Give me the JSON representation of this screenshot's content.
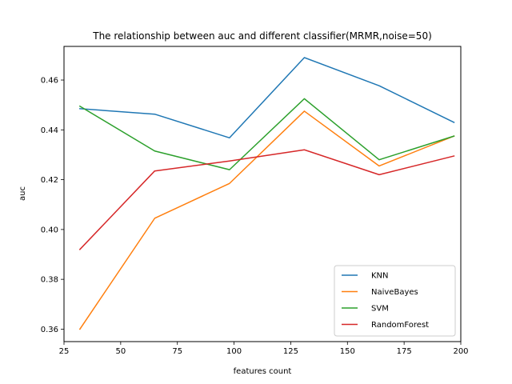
{
  "chart_data": {
    "type": "line",
    "title": "The relationship between auc and different classifier(MRMR,noise=50)",
    "xlabel": "features count",
    "ylabel": "auc",
    "x": [
      32,
      65,
      98,
      131,
      164,
      197
    ],
    "xlim": [
      25,
      200
    ],
    "ylim": [
      0.355,
      0.4735
    ],
    "xticks": [
      25,
      50,
      75,
      100,
      125,
      150,
      175,
      200
    ],
    "yticks": [
      0.36,
      0.38,
      0.4,
      0.42,
      0.44,
      0.46
    ],
    "ytick_labels": [
      "0.36",
      "0.38",
      "0.40",
      "0.42",
      "0.44",
      "0.46"
    ],
    "grid": false,
    "legend_position": "lower-right",
    "series": [
      {
        "name": "KNN",
        "color": "#1f77b4",
        "values": [
          0.4485,
          0.4463,
          0.4368,
          0.469,
          0.4577,
          0.443
        ]
      },
      {
        "name": "NaiveBayes",
        "color": "#ff7f0e",
        "values": [
          0.36,
          0.4045,
          0.4185,
          0.4475,
          0.4255,
          0.4375
        ]
      },
      {
        "name": "SVM",
        "color": "#2ca02c",
        "values": [
          0.4495,
          0.4315,
          0.424,
          0.4525,
          0.428,
          0.4375
        ]
      },
      {
        "name": "RandomForest",
        "color": "#d62728",
        "values": [
          0.392,
          0.4235,
          0.4275,
          0.432,
          0.422,
          0.4295
        ]
      }
    ]
  }
}
